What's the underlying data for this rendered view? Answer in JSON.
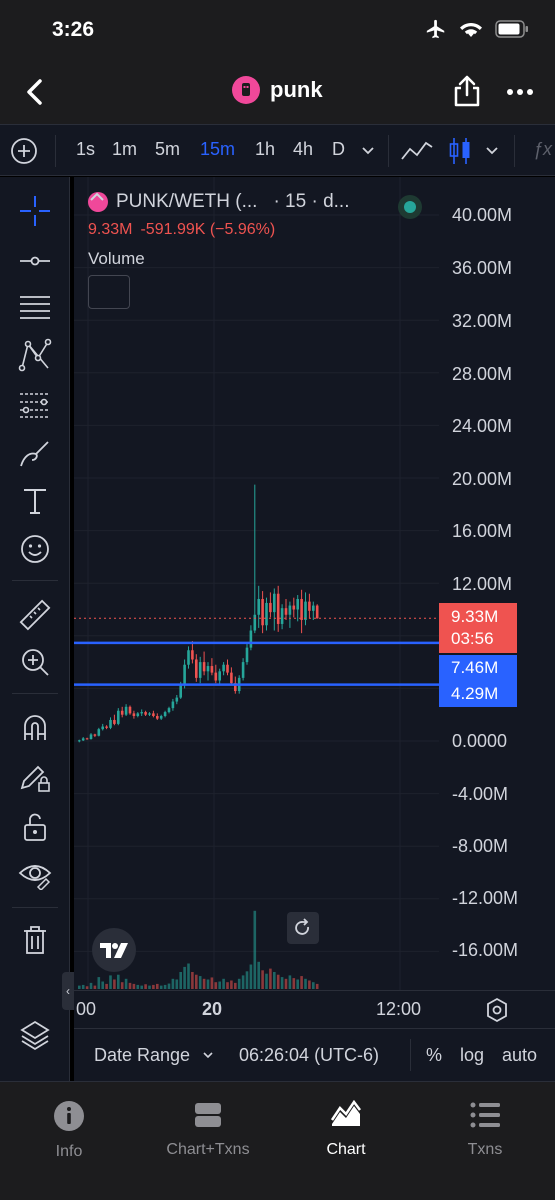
{
  "status": {
    "time": "3:26"
  },
  "nav": {
    "title": "punk"
  },
  "toolbar": {
    "intervals": [
      "1s",
      "1m",
      "5m",
      "15m",
      "1h",
      "4h",
      "D"
    ],
    "active_interval": "15m",
    "indicator_label": "ƒx"
  },
  "legend": {
    "symbol": "PUNK/WETH (...",
    "interval": "· 15 · d...",
    "last": "9.33M",
    "change": "-591.99K (−5.96%)",
    "volume_label": "Volume"
  },
  "price_axis": {
    "upper_labels": [
      "40.00M",
      "36.00M",
      "32.00M",
      "28.00M",
      "24.00M",
      "20.00M",
      "16.00M",
      "12.00M"
    ],
    "lower_labels": [
      "0.0000",
      "-4.00M",
      "-8.00M",
      "-12.00M",
      "-16.00M"
    ],
    "last_price": "9.33M",
    "countdown": "03:56",
    "line_high": "7.46M",
    "line_low": "4.29M"
  },
  "time_axis": {
    "labels": [
      "00",
      "20",
      "12:00"
    ]
  },
  "bottom": {
    "date_range": "Date Range",
    "clock": "06:26:04 (UTC-6)",
    "percent": "%",
    "log": "log",
    "auto": "auto"
  },
  "tabs": [
    {
      "label": "Info",
      "icon": "info-icon"
    },
    {
      "label": "Chart+Txns",
      "icon": "split-view-icon"
    },
    {
      "label": "Chart",
      "icon": "chart-icon"
    },
    {
      "label": "Txns",
      "icon": "list-icon"
    }
  ],
  "colors": {
    "up": "#26a69a",
    "down": "#ef5350",
    "accent": "#2962ff",
    "background": "#131722",
    "price_tag": "#ef5350",
    "line_tag": "#2962ff"
  },
  "chart_data": {
    "type": "candlestick",
    "price_axis_range": [
      -16000000,
      40000000
    ],
    "horizontal_lines": [
      7460000,
      4290000
    ],
    "last_price": 9330000,
    "candles": [
      [
        0.0,
        0.1,
        -0.1,
        0.05
      ],
      [
        0.05,
        0.3,
        0.0,
        0.2
      ],
      [
        0.2,
        0.25,
        0.1,
        0.15
      ],
      [
        0.15,
        0.6,
        0.1,
        0.5
      ],
      [
        0.5,
        0.55,
        0.3,
        0.4
      ],
      [
        0.4,
        1.0,
        0.35,
        0.9
      ],
      [
        0.9,
        1.3,
        0.8,
        1.1
      ],
      [
        1.1,
        1.2,
        0.9,
        1.0
      ],
      [
        1.0,
        1.8,
        0.9,
        1.6
      ],
      [
        1.6,
        2.0,
        1.2,
        1.3
      ],
      [
        1.3,
        2.5,
        1.2,
        2.3
      ],
      [
        2.3,
        2.6,
        1.8,
        2.0
      ],
      [
        2.0,
        2.8,
        1.9,
        2.6
      ],
      [
        2.6,
        2.7,
        2.0,
        2.1
      ],
      [
        2.1,
        2.3,
        1.7,
        1.9
      ],
      [
        1.9,
        2.2,
        1.8,
        2.1
      ],
      [
        2.1,
        2.4,
        1.9,
        2.2
      ],
      [
        2.2,
        2.3,
        1.9,
        2.0
      ],
      [
        2.0,
        2.2,
        1.9,
        2.1
      ],
      [
        2.1,
        2.3,
        1.8,
        1.9
      ],
      [
        1.9,
        2.1,
        1.6,
        1.7
      ],
      [
        1.7,
        2.0,
        1.6,
        1.9
      ],
      [
        1.9,
        2.3,
        1.8,
        2.2
      ],
      [
        2.2,
        2.6,
        2.1,
        2.5
      ],
      [
        2.5,
        3.2,
        2.3,
        3.0
      ],
      [
        3.0,
        3.5,
        2.8,
        3.3
      ],
      [
        3.3,
        4.5,
        3.2,
        4.3
      ],
      [
        4.3,
        6.2,
        4.0,
        5.8
      ],
      [
        5.8,
        7.2,
        5.5,
        6.9
      ],
      [
        6.9,
        7.6,
        5.9,
        6.2
      ],
      [
        6.2,
        6.6,
        4.5,
        4.8
      ],
      [
        4.8,
        6.4,
        4.4,
        6.0
      ],
      [
        6.0,
        6.8,
        5.0,
        5.3
      ],
      [
        5.3,
        6.0,
        4.6,
        5.7
      ],
      [
        5.7,
        6.3,
        5.0,
        5.2
      ],
      [
        5.2,
        5.8,
        4.4,
        4.6
      ],
      [
        4.6,
        5.5,
        4.3,
        5.3
      ],
      [
        5.3,
        6.0,
        5.0,
        5.8
      ],
      [
        5.8,
        6.2,
        5.0,
        5.2
      ],
      [
        5.2,
        5.6,
        4.3,
        4.4
      ],
      [
        4.4,
        4.9,
        3.6,
        3.8
      ],
      [
        3.8,
        5.0,
        3.6,
        4.8
      ],
      [
        4.8,
        6.3,
        4.6,
        6.0
      ],
      [
        6.0,
        7.4,
        5.8,
        7.1
      ],
      [
        7.1,
        8.8,
        6.9,
        8.4
      ],
      [
        8.4,
        19.5,
        8.2,
        9.6
      ],
      [
        9.6,
        11.8,
        8.6,
        10.8
      ],
      [
        10.8,
        11.4,
        8.2,
        8.8
      ],
      [
        8.8,
        10.9,
        8.4,
        10.5
      ],
      [
        10.5,
        11.3,
        9.4,
        9.8
      ],
      [
        9.8,
        11.6,
        8.4,
        11.2
      ],
      [
        11.2,
        11.8,
        8.3,
        8.9
      ],
      [
        8.9,
        10.4,
        8.5,
        10.1
      ],
      [
        10.1,
        10.8,
        9.2,
        9.6
      ],
      [
        9.6,
        10.6,
        8.6,
        10.3
      ],
      [
        10.3,
        10.9,
        9.4,
        10.0
      ],
      [
        10.0,
        11.1,
        9.1,
        10.8
      ],
      [
        10.8,
        11.5,
        8.2,
        9.2
      ],
      [
        9.2,
        11.3,
        8.8,
        10.6
      ],
      [
        10.6,
        11.2,
        9.3,
        9.9
      ],
      [
        9.9,
        10.6,
        9.2,
        10.3
      ],
      [
        10.3,
        10.4,
        9.3,
        9.33
      ]
    ],
    "volume_relative": [
      0.1,
      0.12,
      0.08,
      0.18,
      0.1,
      0.35,
      0.22,
      0.15,
      0.4,
      0.28,
      0.42,
      0.2,
      0.3,
      0.18,
      0.15,
      0.12,
      0.1,
      0.14,
      0.1,
      0.12,
      0.15,
      0.1,
      0.12,
      0.16,
      0.3,
      0.28,
      0.5,
      0.65,
      0.75,
      0.5,
      0.42,
      0.38,
      0.3,
      0.28,
      0.34,
      0.2,
      0.22,
      0.3,
      0.2,
      0.25,
      0.18,
      0.3,
      0.4,
      0.52,
      0.72,
      2.3,
      0.8,
      0.55,
      0.45,
      0.6,
      0.5,
      0.42,
      0.35,
      0.3,
      0.4,
      0.32,
      0.28,
      0.38,
      0.3,
      0.25,
      0.2,
      0.15
    ]
  }
}
